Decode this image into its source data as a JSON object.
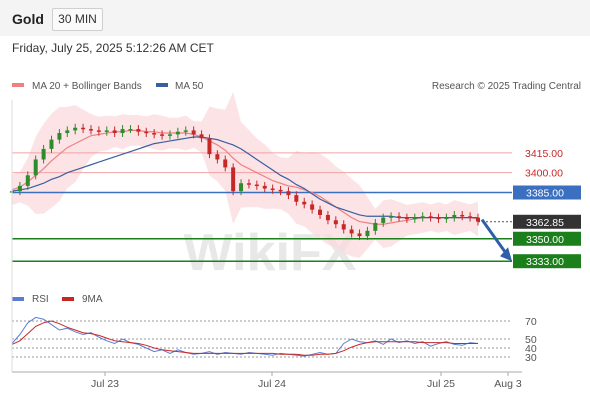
{
  "header": {
    "symbol": "Gold",
    "timeframe": "30 MIN"
  },
  "datetime": "Friday, July 25, 2025 5:12:26 AM CET",
  "legend": {
    "ma20": "MA 20 + Bollinger Bands",
    "ma50": "MA 50",
    "rsi": "RSI",
    "rsi_ma": "9MA"
  },
  "credit": "Research © 2025 Trading Central",
  "watermark": "WikiFX",
  "colors": {
    "ma20": "#f08080",
    "ma50": "#3a5fa0",
    "bb": "#fbd9dd",
    "support": "#1b7f1b",
    "pivot": "#3b6fc0",
    "resistance": "#f1a5a5",
    "up": "#2e8b2e",
    "down": "#c62828",
    "last": "#333333",
    "rsi": "#5b7bd5"
  },
  "chart_data": {
    "type": "line",
    "price_axis": {
      "min": 3315,
      "max": 3455
    },
    "x_ticks": [
      "Jul 23",
      "Jul 24",
      "Jul 25",
      "Aug 3"
    ],
    "levels": [
      {
        "value": 3415.0,
        "label": "3415.00",
        "kind": "resistance"
      },
      {
        "value": 3400.0,
        "label": "3400.00",
        "kind": "resistance"
      },
      {
        "value": 3385.0,
        "label": "3385.00",
        "kind": "pivot"
      },
      {
        "value": 3350.0,
        "label": "3350.00",
        "kind": "support"
      },
      {
        "value": 3333.0,
        "label": "3333.00",
        "kind": "support"
      }
    ],
    "last_price": {
      "value": 3362.85,
      "label": "3362.85"
    },
    "price_path": [
      3386,
      3390,
      3398,
      3410,
      3418,
      3425,
      3430,
      3432,
      3434,
      3433,
      3432,
      3431,
      3432,
      3430,
      3433,
      3433,
      3431,
      3430,
      3429,
      3428,
      3429,
      3431,
      3432,
      3429,
      3426,
      3414,
      3410,
      3404,
      3386,
      3392,
      3391,
      3390,
      3388,
      3387,
      3386,
      3383,
      3378,
      3376,
      3372,
      3368,
      3364,
      3361,
      3357,
      3354,
      3352,
      3356,
      3362,
      3366,
      3367,
      3366,
      3365,
      3366,
      3367,
      3366,
      3365,
      3366,
      3368,
      3367,
      3366,
      3363
    ],
    "ma20": [
      3387,
      3389,
      3393,
      3398,
      3403,
      3409,
      3414,
      3419,
      3422,
      3425,
      3428,
      3429,
      3430,
      3431,
      3431,
      3432,
      3432,
      3431,
      3431,
      3430,
      3430,
      3430,
      3430,
      3429,
      3427,
      3424,
      3421,
      3417,
      3411,
      3406,
      3403,
      3400,
      3397,
      3394,
      3392,
      3390,
      3389,
      3387,
      3385,
      3382,
      3378,
      3374,
      3370,
      3366,
      3363,
      3362,
      3361,
      3361,
      3362,
      3363,
      3364,
      3365,
      3366,
      3366,
      3366,
      3366,
      3366,
      3366,
      3366,
      3365
    ],
    "ma50": [
      3386,
      3387,
      3388,
      3390,
      3392,
      3395,
      3397,
      3400,
      3402,
      3404,
      3406,
      3408,
      3410,
      3412,
      3414,
      3416,
      3418,
      3420,
      3422,
      3423,
      3424,
      3425,
      3426,
      3427,
      3427,
      3426,
      3425,
      3423,
      3421,
      3418,
      3414,
      3410,
      3406,
      3402,
      3398,
      3395,
      3391,
      3388,
      3384,
      3380,
      3377,
      3374,
      3372,
      3370,
      3368,
      3367,
      3367,
      3367,
      3367,
      3366,
      3366,
      3366,
      3366,
      3366,
      3366,
      3366,
      3366,
      3366,
      3366,
      3366
    ],
    "rsi_axis": {
      "min": 20,
      "max": 80,
      "ticks": [
        70,
        50,
        40,
        30
      ]
    },
    "rsi": [
      45,
      55,
      68,
      74,
      72,
      66,
      60,
      62,
      58,
      55,
      57,
      52,
      48,
      45,
      50,
      46,
      44,
      40,
      36,
      38,
      34,
      38,
      35,
      33,
      34,
      36,
      33,
      35,
      34,
      33,
      35,
      34,
      33,
      32,
      34,
      33,
      32,
      31,
      33,
      35,
      33,
      34,
      45,
      50,
      47,
      46,
      48,
      44,
      50,
      46,
      48,
      45,
      47,
      42,
      45,
      47,
      44,
      43,
      46,
      45
    ],
    "rsi_ma": [
      44,
      48,
      56,
      64,
      68,
      70,
      67,
      63,
      60,
      57,
      56,
      54,
      51,
      48,
      47,
      46,
      45,
      43,
      40,
      38,
      37,
      36,
      35,
      34,
      34,
      34,
      34,
      34,
      34,
      34,
      34,
      34,
      34,
      34,
      33,
      33,
      33,
      32,
      32,
      33,
      33,
      34,
      37,
      41,
      44,
      46,
      47,
      47,
      47,
      47,
      47,
      47,
      46,
      46,
      46,
      46,
      45,
      45,
      45,
      45
    ],
    "forecast_target": 3333.0
  }
}
